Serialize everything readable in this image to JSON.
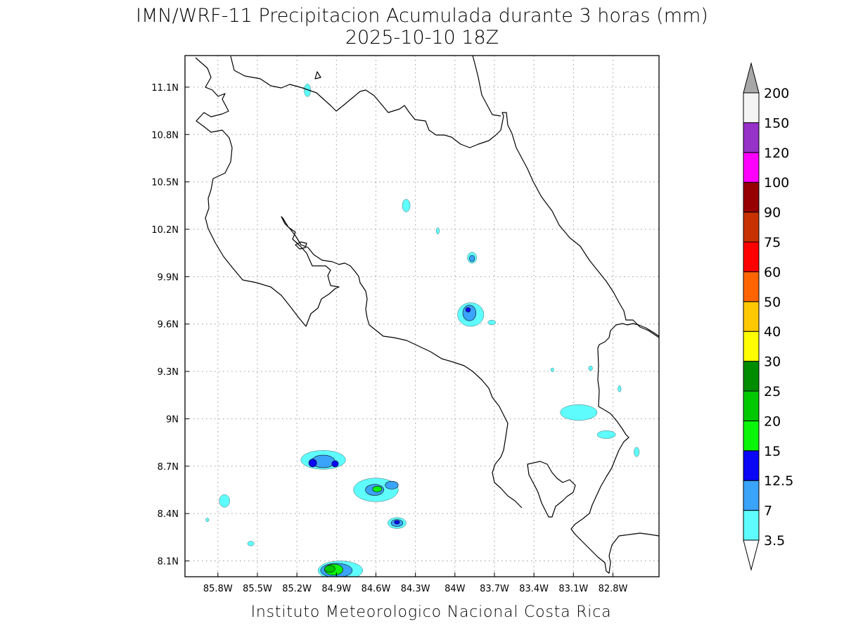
{
  "title": {
    "line1": "IMN/WRF-11 Precipitacion Acumulada durante 3 horas (mm)",
    "line2": "2025-10-10 18Z"
  },
  "footer": "Instituto Meteorologico Nacional Costa Rica",
  "map": {
    "lon_range": [
      -86.05,
      -82.45
    ],
    "lat_range": [
      8.0,
      11.3
    ],
    "lon_ticks": [
      {
        "value": -85.8,
        "label": "85.8W"
      },
      {
        "value": -85.5,
        "label": "85.5W"
      },
      {
        "value": -85.2,
        "label": "85.2W"
      },
      {
        "value": -84.9,
        "label": "84.9W"
      },
      {
        "value": -84.6,
        "label": "84.6W"
      },
      {
        "value": -84.3,
        "label": "84.3W"
      },
      {
        "value": -84.0,
        "label": "84W"
      },
      {
        "value": -83.7,
        "label": "83.7W"
      },
      {
        "value": -83.4,
        "label": "83.4W"
      },
      {
        "value": -83.1,
        "label": "83.1W"
      },
      {
        "value": -82.8,
        "label": "82.8W"
      }
    ],
    "lat_ticks": [
      {
        "value": 11.1,
        "label": "11.1N"
      },
      {
        "value": 10.8,
        "label": "10.8N"
      },
      {
        "value": 10.5,
        "label": "10.5N"
      },
      {
        "value": 10.2,
        "label": "10.2N"
      },
      {
        "value": 9.9,
        "label": "9.9N"
      },
      {
        "value": 9.6,
        "label": "9.6N"
      },
      {
        "value": 9.3,
        "label": "9.3N"
      },
      {
        "value": 9.0,
        "label": "9N"
      },
      {
        "value": 8.7,
        "label": "8.7N"
      },
      {
        "value": 8.4,
        "label": "8.4N"
      },
      {
        "value": 8.1,
        "label": "8.1N"
      }
    ],
    "grid": true,
    "precip_cells": [
      {
        "lon": -84.87,
        "lat": 8.04,
        "level": 0,
        "rx": 0.17,
        "ry": 0.06
      },
      {
        "lon": -84.9,
        "lat": 8.04,
        "level": 1,
        "rx": 0.12,
        "ry": 0.045
      },
      {
        "lon": -84.92,
        "lat": 8.045,
        "level": 3,
        "rx": 0.07,
        "ry": 0.035
      },
      {
        "lon": -84.95,
        "lat": 8.05,
        "level": 4,
        "rx": 0.04,
        "ry": 0.022
      },
      {
        "lon": -85.0,
        "lat": 8.74,
        "level": 0,
        "rx": 0.17,
        "ry": 0.06
      },
      {
        "lon": -85.0,
        "lat": 8.73,
        "level": 1,
        "rx": 0.09,
        "ry": 0.04
      },
      {
        "lon": -85.08,
        "lat": 8.72,
        "level": 2,
        "rx": 0.03,
        "ry": 0.025
      },
      {
        "lon": -84.91,
        "lat": 8.715,
        "level": 2,
        "rx": 0.025,
        "ry": 0.02
      },
      {
        "lon": -84.6,
        "lat": 8.55,
        "level": 0,
        "rx": 0.17,
        "ry": 0.075
      },
      {
        "lon": -84.61,
        "lat": 8.55,
        "level": 1,
        "rx": 0.07,
        "ry": 0.035
      },
      {
        "lon": -84.59,
        "lat": 8.555,
        "level": 3,
        "rx": 0.035,
        "ry": 0.018
      },
      {
        "lon": -84.48,
        "lat": 8.58,
        "level": 1,
        "rx": 0.05,
        "ry": 0.025
      },
      {
        "lon": -84.44,
        "lat": 8.34,
        "level": 0,
        "rx": 0.07,
        "ry": 0.035
      },
      {
        "lon": -84.44,
        "lat": 8.34,
        "level": 1,
        "rx": 0.045,
        "ry": 0.022
      },
      {
        "lon": -84.44,
        "lat": 8.345,
        "level": 2,
        "rx": 0.02,
        "ry": 0.012
      },
      {
        "lon": -83.88,
        "lat": 9.66,
        "level": 0,
        "rx": 0.1,
        "ry": 0.075
      },
      {
        "lon": -83.89,
        "lat": 9.67,
        "level": 1,
        "rx": 0.05,
        "ry": 0.05
      },
      {
        "lon": -83.9,
        "lat": 9.69,
        "level": 2,
        "rx": 0.018,
        "ry": 0.015
      },
      {
        "lon": -83.87,
        "lat": 10.02,
        "level": 0,
        "rx": 0.035,
        "ry": 0.035
      },
      {
        "lon": -83.87,
        "lat": 10.015,
        "level": 1,
        "rx": 0.02,
        "ry": 0.02
      },
      {
        "lon": -85.12,
        "lat": 11.08,
        "level": 0,
        "rx": 0.025,
        "ry": 0.04
      },
      {
        "lon": -84.37,
        "lat": 10.35,
        "level": 0,
        "rx": 0.03,
        "ry": 0.04
      },
      {
        "lon": -84.13,
        "lat": 10.19,
        "level": 0,
        "rx": 0.012,
        "ry": 0.02
      },
      {
        "lon": -85.75,
        "lat": 8.48,
        "level": 0,
        "rx": 0.04,
        "ry": 0.04
      },
      {
        "lon": -83.06,
        "lat": 9.04,
        "level": 0,
        "rx": 0.14,
        "ry": 0.05
      },
      {
        "lon": -82.85,
        "lat": 8.9,
        "level": 0,
        "rx": 0.07,
        "ry": 0.025
      },
      {
        "lon": -82.62,
        "lat": 8.79,
        "level": 0,
        "rx": 0.02,
        "ry": 0.03
      },
      {
        "lon": -83.72,
        "lat": 9.61,
        "level": 0,
        "rx": 0.03,
        "ry": 0.015
      },
      {
        "lon": -82.97,
        "lat": 9.32,
        "level": 0,
        "rx": 0.015,
        "ry": 0.015
      },
      {
        "lon": -82.75,
        "lat": 9.19,
        "level": 0,
        "rx": 0.012,
        "ry": 0.02
      },
      {
        "lon": -83.26,
        "lat": 9.31,
        "level": 0,
        "rx": 0.012,
        "ry": 0.012
      },
      {
        "lon": -85.55,
        "lat": 8.21,
        "level": 0,
        "rx": 0.025,
        "ry": 0.015
      },
      {
        "lon": -85.88,
        "lat": 8.36,
        "level": 0,
        "rx": 0.012,
        "ry": 0.012
      }
    ]
  },
  "legend": {
    "levels": [
      {
        "label": "3.5",
        "color": "#5efcfc"
      },
      {
        "label": "7",
        "color": "#3aa3fa"
      },
      {
        "label": "12.5",
        "color": "#0a06f6"
      },
      {
        "label": "15",
        "color": "#0af50a"
      },
      {
        "label": "20",
        "color": "#00c800"
      },
      {
        "label": "25",
        "color": "#008c00"
      },
      {
        "label": "30",
        "color": "#ffff00"
      },
      {
        "label": "40",
        "color": "#ffc800"
      },
      {
        "label": "50",
        "color": "#ff6400"
      },
      {
        "label": "60",
        "color": "#ff0000"
      },
      {
        "label": "75",
        "color": "#c83200"
      },
      {
        "label": "90",
        "color": "#960000"
      },
      {
        "label": "100",
        "color": "#ff00ff"
      },
      {
        "label": "120",
        "color": "#9632c8"
      },
      {
        "label": "150",
        "color": "#f4f4f4"
      },
      {
        "label": "200",
        "color": null
      }
    ],
    "top_arrow_color": "#a8a8a8",
    "bottom_arrow_color": "#ffffff"
  }
}
